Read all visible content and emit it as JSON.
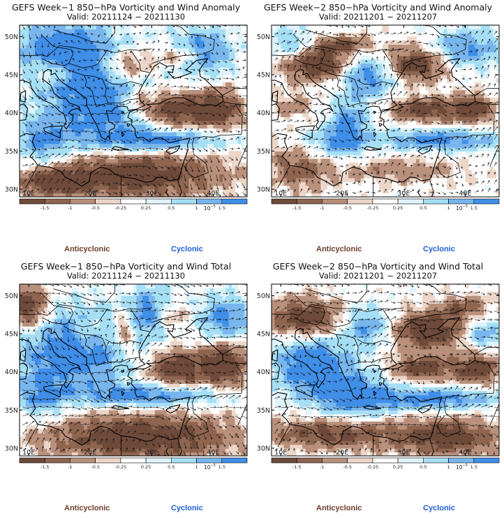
{
  "panels": [
    {
      "title": "GEFS Week−1 850−hPa Vorticity and Wind Anomaly",
      "valid": "Valid: 20211124 − 20211130",
      "field": "anomaly",
      "week": 1
    },
    {
      "title": "GEFS Week−2 850−hPa Vorticity and Wind Anomaly",
      "valid": "Valid: 20211201 − 20211207",
      "field": "anomaly",
      "week": 2
    },
    {
      "title": "GEFS Week−1 850−hPa Vorticity and Wind Total",
      "valid": "Valid: 20211124 − 20211130",
      "field": "total",
      "week": 1
    },
    {
      "title": "GEFS Week−2 850−hPa Vorticity and Wind Total",
      "valid": "Valid: 20211201 − 20211207",
      "field": "total",
      "week": 2
    }
  ],
  "legend": {
    "anticyclonic": "Anticyclonic",
    "cyclonic": "Cyclonic"
  },
  "colorbar_scale_label": "10",
  "colorbar_scale_exponent": "−5",
  "colors": {
    "anticyclonic_strong": "#6e4a3a",
    "anticyclonic_mid": "#8f6550",
    "anticyclonic_weak": "#b8907c",
    "anticyclonic_faint": "#ecd6c8",
    "neutral": "#ffffff",
    "cyclonic_faint": "#dff4fb",
    "cyclonic_weak": "#a6dff5",
    "cyclonic_mid": "#79b6ee",
    "cyclonic_strong": "#3f8ee8",
    "cyclonic_max": "#1f6fe0",
    "anticyclonic_label": "#6d3b2a",
    "cyclonic_label": "#1f5ed6"
  },
  "chart_data": [
    {
      "type": "heatmap",
      "title": "GEFS Week−1 850−hPa Vorticity and Wind Anomaly",
      "subtitle": "Valid: 20211124 − 20211130",
      "x_ticks": [
        "10E",
        "20E",
        "30E",
        "40E"
      ],
      "x_tick_values": [
        10,
        20,
        30,
        40
      ],
      "xlim": [
        8.5,
        45.5
      ],
      "y_ticks": [
        "30N",
        "35N",
        "40N",
        "45N",
        "50N"
      ],
      "y_tick_values": [
        30,
        35,
        40,
        45,
        50
      ],
      "ylim": [
        29,
        51.5
      ],
      "colorbar_ticks": [
        -1.5,
        -1,
        -0.5,
        -0.25,
        0.25,
        0.5,
        1,
        1.5
      ],
      "features": [
        {
          "kind": "anticyclonic",
          "lon": 26,
          "lat": 32,
          "rlon": 15,
          "rlat": 3.2,
          "strength": 1.5
        },
        {
          "kind": "anticyclonic",
          "lon": 14,
          "lat": 31,
          "rlon": 5,
          "rlat": 1.5,
          "strength": 1.1
        },
        {
          "kind": "anticyclonic",
          "lon": 33,
          "lat": 40.5,
          "rlon": 4,
          "rlat": 2.5,
          "strength": 1.5
        },
        {
          "kind": "anticyclonic",
          "lon": 40.5,
          "lat": 40.5,
          "rlon": 4,
          "rlat": 2.6,
          "strength": 1.5
        },
        {
          "kind": "anticyclonic",
          "lon": 26,
          "lat": 46.2,
          "rlon": 4,
          "rlat": 2.2,
          "strength": 1.2
        },
        {
          "kind": "anticyclonic",
          "lon": 34.5,
          "lat": 47.5,
          "rlon": 4,
          "rlat": 1.5,
          "strength": 1.0
        },
        {
          "kind": "anticyclonic",
          "lon": 14,
          "lat": 45.5,
          "rlon": 3,
          "rlat": 1.5,
          "strength": 0.9
        },
        {
          "kind": "anticyclonic",
          "lon": 27.5,
          "lat": 41.5,
          "rlon": 2.4,
          "rlat": 1.7,
          "strength": 0.9
        },
        {
          "kind": "cyclonic",
          "lon": 21,
          "lat": 42,
          "rlon": 9,
          "rlat": 7,
          "strength": 1.4
        },
        {
          "kind": "cyclonic",
          "lon": 15,
          "lat": 48.5,
          "rlon": 7,
          "rlat": 3.5,
          "strength": 1.3
        },
        {
          "kind": "cyclonic",
          "lon": 32,
          "lat": 36.5,
          "rlon": 10,
          "rlat": 1.5,
          "strength": 1.3
        },
        {
          "kind": "cyclonic",
          "lon": 38,
          "lat": 48,
          "rlon": 5,
          "rlat": 3,
          "strength": 1.3
        },
        {
          "kind": "cyclonic",
          "lon": 12,
          "lat": 36,
          "rlon": 4,
          "rlat": 3,
          "strength": 1.0
        }
      ],
      "wind_mean": [
        4,
        -1
      ]
    },
    {
      "type": "heatmap",
      "title": "GEFS Week−2 850−hPa Vorticity and Wind Anomaly",
      "subtitle": "Valid: 20211201 − 20211207",
      "x_ticks": [
        "10E",
        "20E",
        "30E",
        "40E"
      ],
      "x_tick_values": [
        10,
        20,
        30,
        40
      ],
      "xlim": [
        8.5,
        45.5
      ],
      "y_ticks": [
        "30N",
        "35N",
        "40N",
        "45N",
        "50N"
      ],
      "y_tick_values": [
        30,
        35,
        40,
        45,
        50
      ],
      "ylim": [
        29,
        51.5
      ],
      "colorbar_ticks": [
        -1.5,
        -1,
        -0.5,
        -0.25,
        0.25,
        0.5,
        1,
        1.5
      ],
      "features": [
        {
          "kind": "anticyclonic",
          "lon": 16,
          "lat": 46.5,
          "rlon": 6,
          "rlat": 2.2,
          "strength": 1.5
        },
        {
          "kind": "anticyclonic",
          "lon": 32,
          "lat": 46.5,
          "rlon": 5,
          "rlat": 2.2,
          "strength": 1.5
        },
        {
          "kind": "anticyclonic",
          "lon": 20,
          "lat": 49,
          "rlon": 6,
          "rlat": 1.2,
          "strength": 1.0
        },
        {
          "kind": "anticyclonic",
          "lon": 33,
          "lat": 40.5,
          "rlon": 5,
          "rlat": 1.6,
          "strength": 1.3
        },
        {
          "kind": "anticyclonic",
          "lon": 41,
          "lat": 40.5,
          "rlon": 3.5,
          "rlat": 1.8,
          "strength": 1.4
        },
        {
          "kind": "anticyclonic",
          "lon": 13,
          "lat": 33,
          "rlon": 5,
          "rlat": 3,
          "strength": 0.9
        },
        {
          "kind": "anticyclonic",
          "lon": 29,
          "lat": 32.5,
          "rlon": 10,
          "rlat": 1.6,
          "strength": 0.6
        },
        {
          "kind": "anticyclonic",
          "lon": 12,
          "lat": 41,
          "rlon": 3,
          "rlat": 1.7,
          "strength": 0.6
        },
        {
          "kind": "cyclonic",
          "lon": 24,
          "lat": 45,
          "rlon": 4.5,
          "rlat": 3,
          "strength": 1.3
        },
        {
          "kind": "cyclonic",
          "lon": 21,
          "lat": 38.5,
          "rlon": 3,
          "rlat": 3,
          "strength": 1.2
        },
        {
          "kind": "cyclonic",
          "lon": 36,
          "lat": 36.5,
          "rlon": 10,
          "rlat": 1.4,
          "strength": 1.2
        },
        {
          "kind": "cyclonic",
          "lon": 40,
          "lat": 48.5,
          "rlon": 6,
          "rlat": 2.5,
          "strength": 1.1
        },
        {
          "kind": "cyclonic",
          "lon": 12,
          "lat": 49,
          "rlon": 4,
          "rlat": 2,
          "strength": 1.0
        },
        {
          "kind": "cyclonic",
          "lon": 18,
          "lat": 36,
          "rlon": 5,
          "rlat": 2,
          "strength": 0.8
        }
      ],
      "wind_mean": [
        3,
        1
      ]
    },
    {
      "type": "heatmap",
      "title": "GEFS Week−1 850−hPa Vorticity and Wind Total",
      "subtitle": "Valid: 20211124 − 20211130",
      "x_ticks": [
        "10E",
        "20E",
        "30E",
        "40E"
      ],
      "x_tick_values": [
        10,
        20,
        30,
        40
      ],
      "xlim": [
        8.5,
        45.5
      ],
      "y_ticks": [
        "30N",
        "35N",
        "40N",
        "45N",
        "50N"
      ],
      "y_tick_values": [
        30,
        35,
        40,
        45,
        50
      ],
      "ylim": [
        29,
        51.5
      ],
      "colorbar_ticks": [
        -1.5,
        -1,
        -0.5,
        -0.25,
        0.25,
        0.5,
        1,
        1.5
      ],
      "features": [
        {
          "kind": "anticyclonic",
          "lon": 28,
          "lat": 31.5,
          "rlon": 15,
          "rlat": 3,
          "strength": 1.5
        },
        {
          "kind": "anticyclonic",
          "lon": 10,
          "lat": 48.5,
          "rlon": 3,
          "rlat": 3,
          "strength": 1.5
        },
        {
          "kind": "anticyclonic",
          "lon": 25.5,
          "lat": 45.5,
          "rlon": 2,
          "rlat": 3.5,
          "strength": 1.3
        },
        {
          "kind": "anticyclonic",
          "lon": 33,
          "lat": 47.5,
          "rlon": 3,
          "rlat": 2,
          "strength": 1.2
        },
        {
          "kind": "anticyclonic",
          "lon": 34,
          "lat": 40.5,
          "rlon": 5,
          "rlat": 2.6,
          "strength": 1.5
        },
        {
          "kind": "anticyclonic",
          "lon": 42,
          "lat": 41,
          "rlon": 3.5,
          "rlat": 3,
          "strength": 1.5
        },
        {
          "kind": "anticyclonic",
          "lon": 20,
          "lat": 45,
          "rlon": 2.5,
          "rlat": 2,
          "strength": 0.8
        },
        {
          "kind": "cyclonic",
          "lon": 18,
          "lat": 43,
          "rlon": 10,
          "rlat": 5,
          "strength": 1.5
        },
        {
          "kind": "cyclonic",
          "lon": 30,
          "lat": 48,
          "rlon": 5,
          "rlat": 3,
          "strength": 1.3
        },
        {
          "kind": "cyclonic",
          "lon": 30,
          "lat": 37,
          "rlon": 12,
          "rlat": 1.4,
          "strength": 1.3
        },
        {
          "kind": "cyclonic",
          "lon": 42,
          "lat": 47,
          "rlon": 4,
          "rlat": 3,
          "strength": 1.2
        },
        {
          "kind": "cyclonic",
          "lon": 12,
          "lat": 37,
          "rlon": 4,
          "rlat": 3,
          "strength": 0.9
        }
      ],
      "wind_mean": [
        5,
        -1
      ]
    },
    {
      "type": "heatmap",
      "title": "GEFS Week−2 850−hPa Vorticity and Wind Total",
      "subtitle": "Valid: 20211201 − 20211207",
      "x_ticks": [
        "10E",
        "20E",
        "30E",
        "40E"
      ],
      "x_tick_values": [
        10,
        20,
        30,
        40
      ],
      "xlim": [
        8.5,
        45.5
      ],
      "y_ticks": [
        "30N",
        "35N",
        "40N",
        "45N",
        "50N"
      ],
      "y_tick_values": [
        30,
        35,
        40,
        45,
        50
      ],
      "ylim": [
        29,
        51.5
      ],
      "colorbar_ticks": [
        -1.5,
        -1,
        -0.5,
        -0.25,
        0.25,
        0.5,
        1,
        1.5
      ],
      "features": [
        {
          "kind": "anticyclonic",
          "lon": 14,
          "lat": 47,
          "rlon": 6,
          "rlat": 2.5,
          "strength": 1.5
        },
        {
          "kind": "anticyclonic",
          "lon": 34,
          "lat": 45.5,
          "rlon": 6,
          "rlat": 2.5,
          "strength": 1.5
        },
        {
          "kind": "anticyclonic",
          "lon": 33,
          "lat": 40.5,
          "rlon": 5,
          "rlat": 1.6,
          "strength": 1.3
        },
        {
          "kind": "anticyclonic",
          "lon": 42,
          "lat": 40.5,
          "rlon": 3.5,
          "rlat": 2,
          "strength": 1.4
        },
        {
          "kind": "anticyclonic",
          "lon": 18,
          "lat": 32,
          "rlon": 10,
          "rlat": 2,
          "strength": 1.2
        },
        {
          "kind": "anticyclonic",
          "lon": 37,
          "lat": 31.5,
          "rlon": 9,
          "rlat": 2.5,
          "strength": 1.3
        },
        {
          "kind": "anticyclonic",
          "lon": 40,
          "lat": 48.5,
          "rlon": 4,
          "rlat": 1.5,
          "strength": 0.9
        },
        {
          "kind": "cyclonic",
          "lon": 15,
          "lat": 41,
          "rlon": 6,
          "rlat": 4,
          "strength": 1.5
        },
        {
          "kind": "cyclonic",
          "lon": 22,
          "lat": 37,
          "rlon": 6,
          "rlat": 3,
          "strength": 1.3
        },
        {
          "kind": "cyclonic",
          "lon": 35,
          "lat": 36.5,
          "rlon": 10,
          "rlat": 1.4,
          "strength": 1.3
        },
        {
          "kind": "cyclonic",
          "lon": 24,
          "lat": 46,
          "rlon": 4,
          "rlat": 2.5,
          "strength": 1.1
        },
        {
          "kind": "cyclonic",
          "lon": 43,
          "lat": 45,
          "rlon": 3,
          "rlat": 2,
          "strength": 1.0
        }
      ],
      "wind_mean": [
        4,
        0
      ]
    }
  ]
}
